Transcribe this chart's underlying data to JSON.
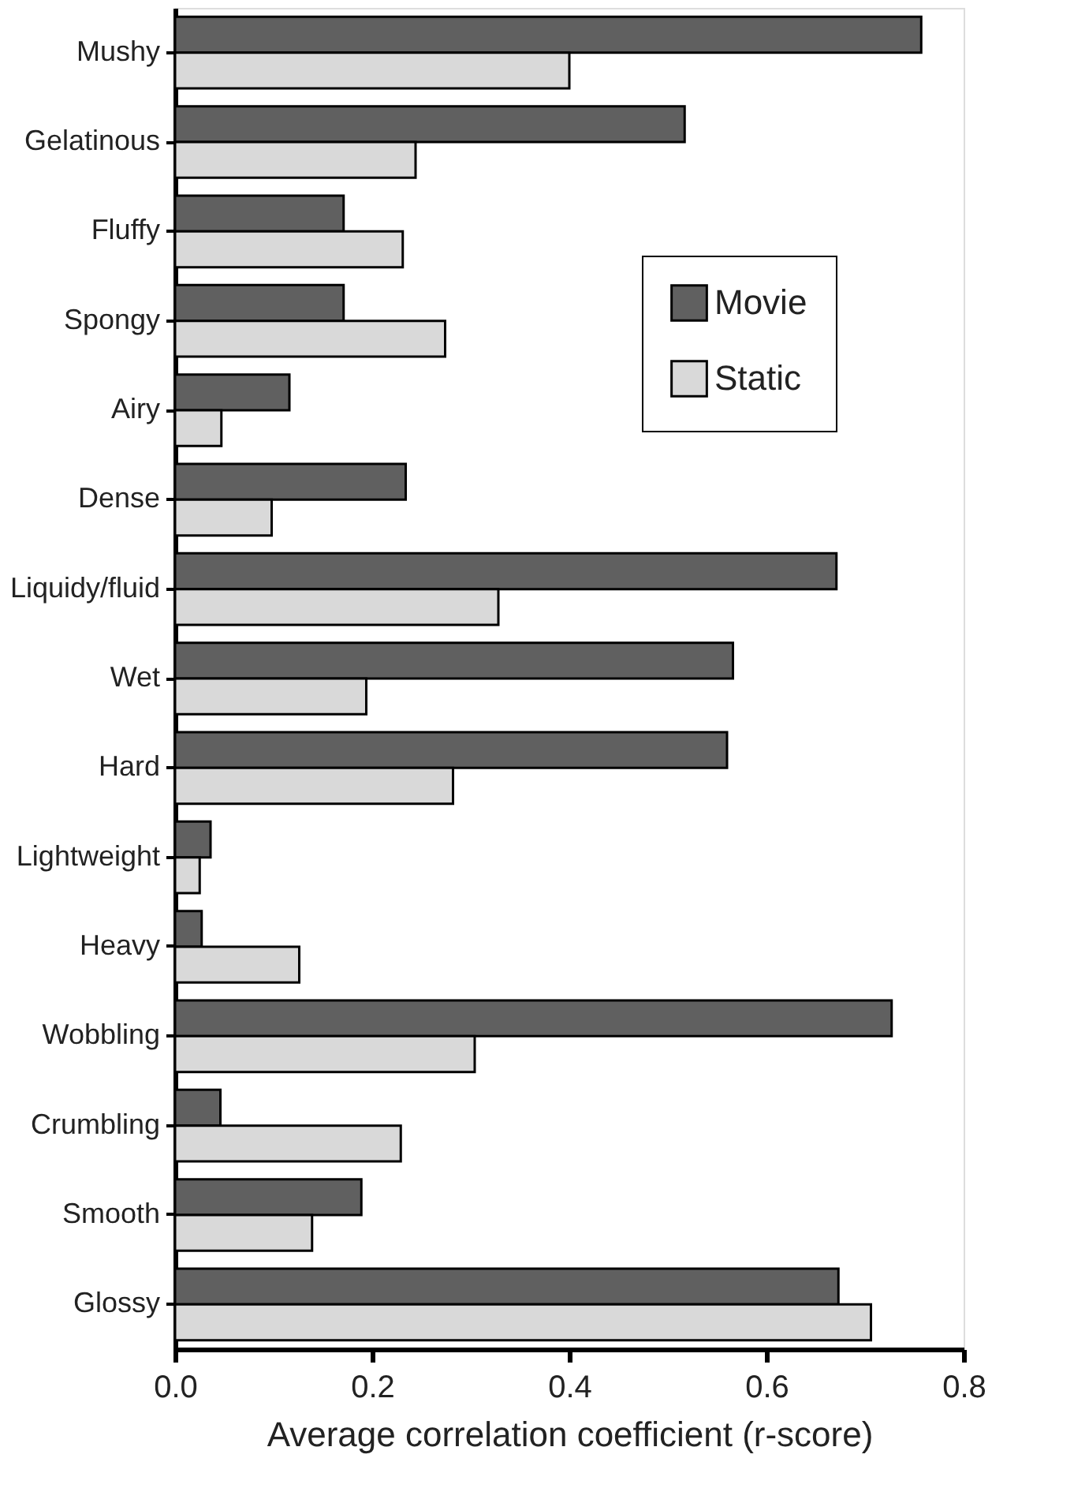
{
  "chart_data": {
    "type": "bar",
    "orientation": "horizontal",
    "xlabel": "Average correlation coefficient (r-score)",
    "categories": [
      "Mushy",
      "Gelatinous",
      "Fluffy",
      "Spongy",
      "Airy",
      "Dense",
      "Liquidy/fluid",
      "Wet",
      "Hard",
      "Lightweight",
      "Heavy",
      "Wobbling",
      "Crumbling",
      "Smooth",
      "Glossy"
    ],
    "series": [
      {
        "name": "Movie",
        "color": "#606060",
        "values": [
          0.757,
          0.517,
          0.171,
          0.171,
          0.116,
          0.234,
          0.671,
          0.566,
          0.56,
          0.036,
          0.027,
          0.727,
          0.046,
          0.189,
          0.673
        ]
      },
      {
        "name": "Static",
        "color": "#d9d9d9",
        "values": [
          0.4,
          0.244,
          0.231,
          0.274,
          0.047,
          0.098,
          0.328,
          0.194,
          0.282,
          0.025,
          0.126,
          0.304,
          0.229,
          0.139,
          0.706
        ]
      }
    ],
    "xlim": [
      0,
      0.8
    ],
    "xticks": [
      {
        "value": 0,
        "label": "0.0"
      },
      {
        "value": 0.2,
        "label": "0.2"
      },
      {
        "value": 0.4,
        "label": "0.4"
      },
      {
        "value": 0.6,
        "label": "0.6"
      },
      {
        "value": 0.8,
        "label": "0.8"
      }
    ],
    "grid": false,
    "legend": "top right"
  }
}
